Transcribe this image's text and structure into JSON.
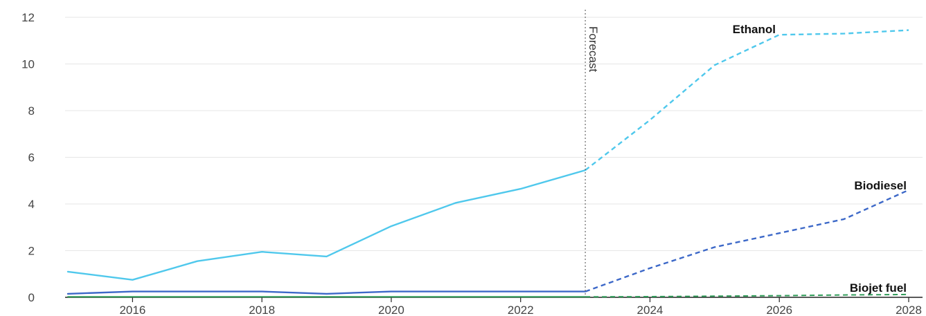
{
  "chart_data": {
    "type": "line",
    "title": "",
    "xlabel": "",
    "ylabel": "",
    "xlim": [
      2015,
      2028
    ],
    "ylim": [
      0,
      12
    ],
    "x_ticks": [
      "2016",
      "2018",
      "2020",
      "2022",
      "2024",
      "2026",
      "2028"
    ],
    "y_ticks": [
      "0",
      "2",
      "4",
      "6",
      "8",
      "10",
      "12"
    ],
    "grid": "horizontal",
    "forecast_start": 2023,
    "forecast_label": "Forecast",
    "x": [
      2015,
      2016,
      2017,
      2018,
      2019,
      2020,
      2021,
      2022,
      2023,
      2024,
      2025,
      2026,
      2027,
      2028
    ],
    "series": [
      {
        "name": "Ethanol",
        "color": "#4fc8ec",
        "values": [
          1.1,
          0.75,
          1.55,
          1.95,
          1.75,
          3.05,
          4.05,
          4.65,
          5.45,
          7.6,
          9.95,
          11.25,
          11.3,
          11.45
        ]
      },
      {
        "name": "Biodiesel",
        "color": "#3c68c8",
        "values": [
          0.15,
          0.25,
          0.25,
          0.25,
          0.15,
          0.25,
          0.25,
          0.25,
          0.25,
          1.25,
          2.15,
          2.75,
          3.35,
          4.6
        ]
      },
      {
        "name": "Biojet fuel",
        "color": "#2e9a57",
        "values": [
          0.02,
          0.02,
          0.02,
          0.02,
          0.02,
          0.02,
          0.02,
          0.02,
          0.02,
          0.03,
          0.05,
          0.07,
          0.1,
          0.12
        ]
      }
    ]
  }
}
